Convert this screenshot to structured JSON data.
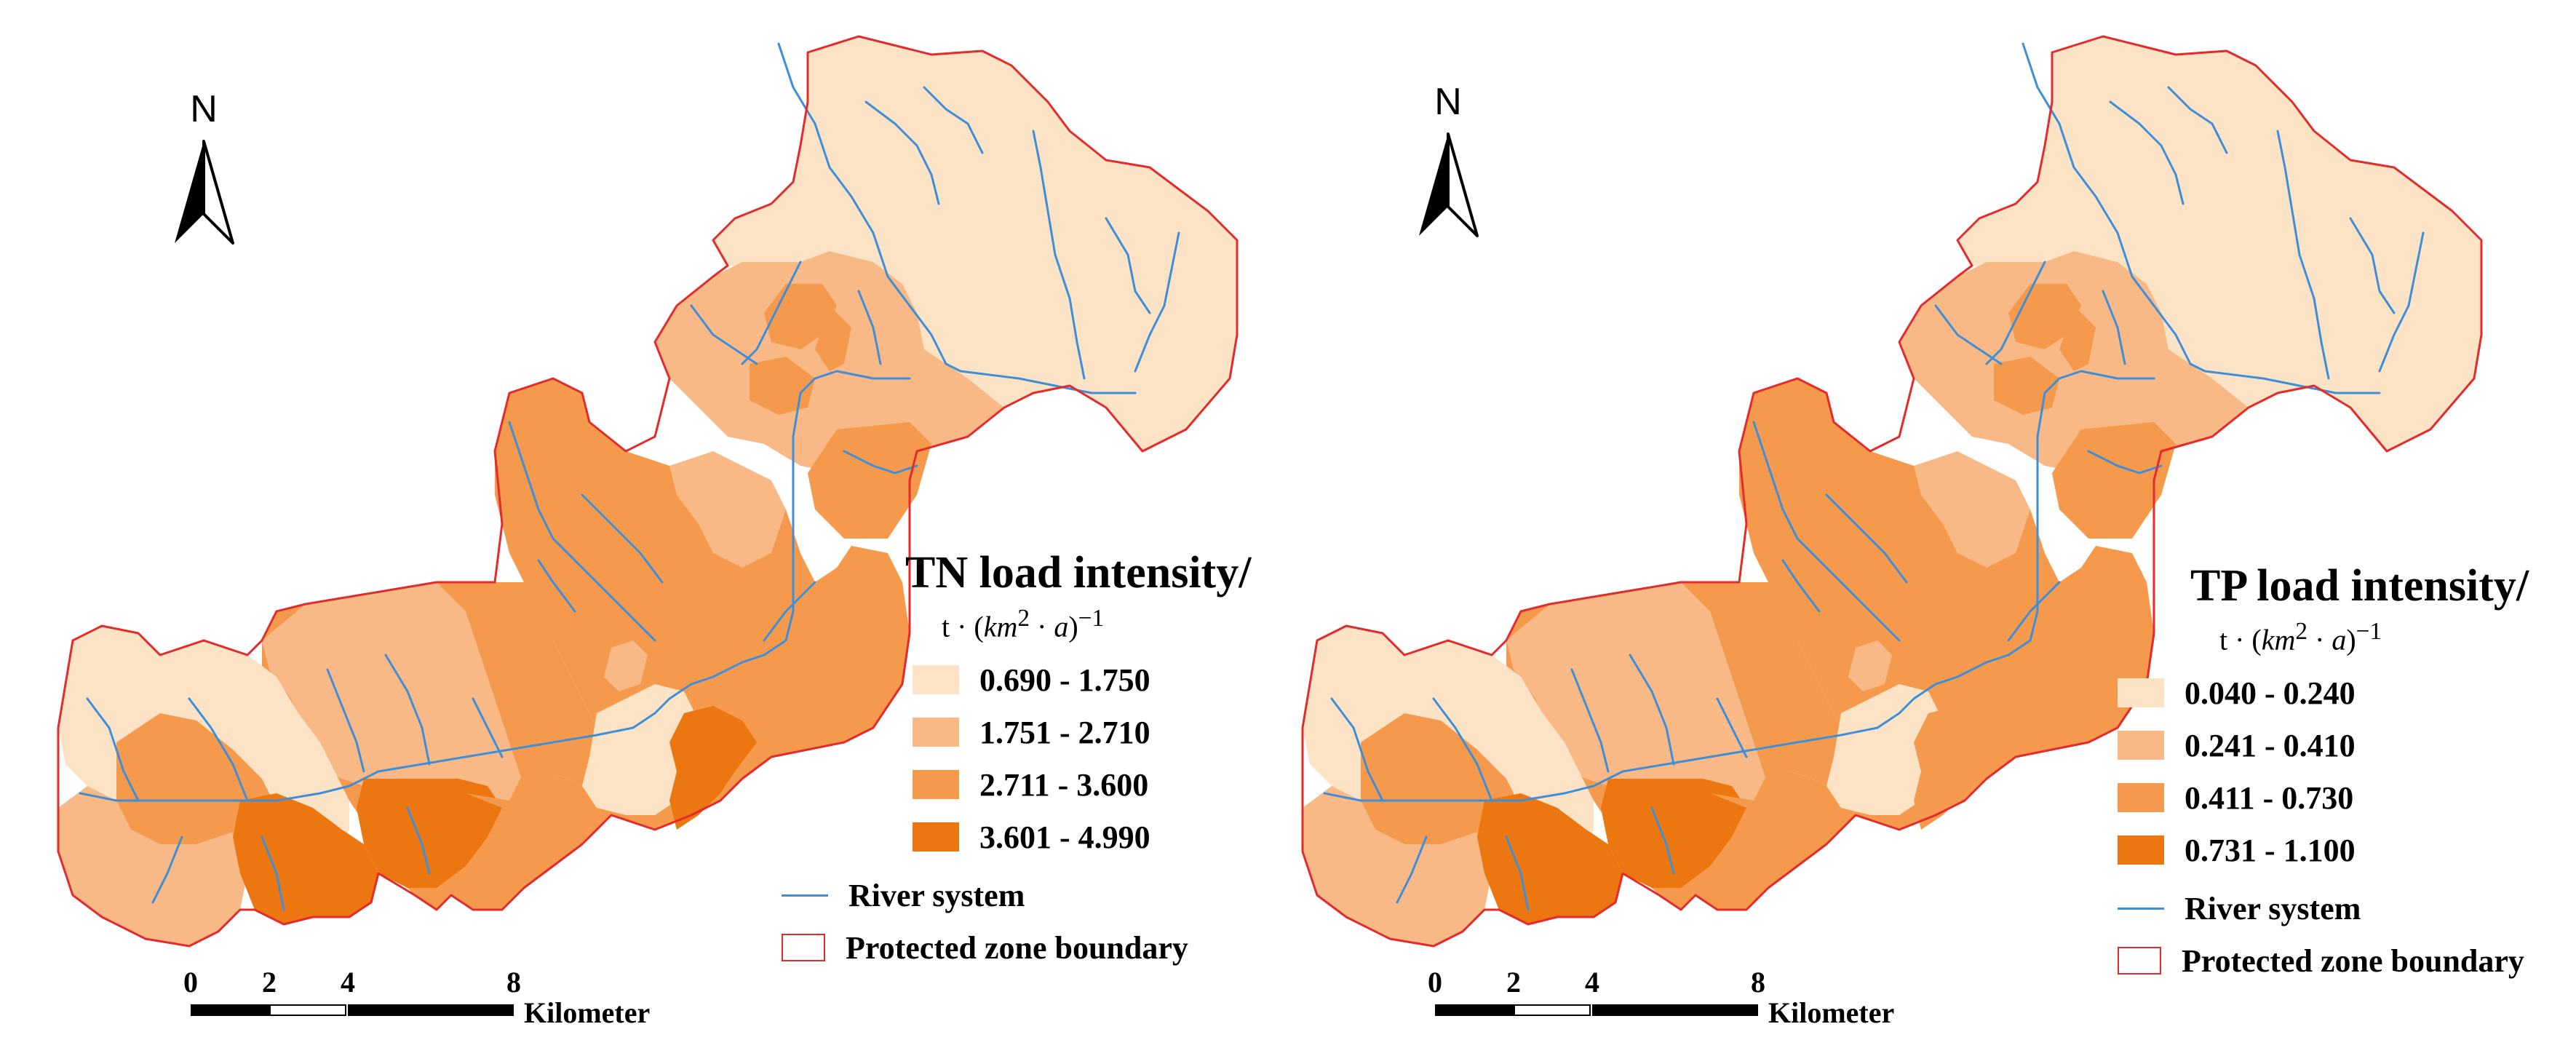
{
  "maps": [
    {
      "id": "tn",
      "north_label": "N",
      "legend": {
        "title": "TN load intensity/",
        "unit_prefix": "t · (",
        "unit_var": "km",
        "unit_sup": "2",
        "unit_mid": " · ",
        "unit_var2": "a",
        "unit_suffix": ")",
        "unit_exp": "−1",
        "classes": [
          {
            "label": "0.690 - 1.750",
            "color": "#fde3c6"
          },
          {
            "label": "1.751 - 2.710",
            "color": "#f9b986"
          },
          {
            "label": "2.711 - 3.600",
            "color": "#f59a4c"
          },
          {
            "label": "3.601 - 4.990",
            "color": "#ec760f"
          }
        ],
        "river_label": "River system",
        "boundary_label": "Protected zone boundary"
      },
      "scale": {
        "ticks": [
          "0",
          "2",
          "4",
          "8"
        ],
        "unit": "Kilometer"
      }
    },
    {
      "id": "tp",
      "north_label": "N",
      "legend": {
        "title": "TP load intensity/",
        "unit_prefix": "t · (",
        "unit_var": "km",
        "unit_sup": "2",
        "unit_mid": " · ",
        "unit_var2": "a",
        "unit_suffix": ")",
        "unit_exp": "−1",
        "classes": [
          {
            "label": "0.040 - 0.240",
            "color": "#fde3c6"
          },
          {
            "label": "0.241 - 0.410",
            "color": "#f9b986"
          },
          {
            "label": "0.411 - 0.730",
            "color": "#f59a4c"
          },
          {
            "label": "0.731 - 1.100",
            "color": "#ec760f"
          }
        ],
        "river_label": "River system",
        "boundary_label": "Protected zone boundary"
      },
      "scale": {
        "ticks": [
          "0",
          "2",
          "4",
          "8"
        ],
        "unit": "Kilometer"
      }
    }
  ],
  "colors": {
    "river": "#3f8ed8",
    "boundary": "#e32b2b"
  }
}
